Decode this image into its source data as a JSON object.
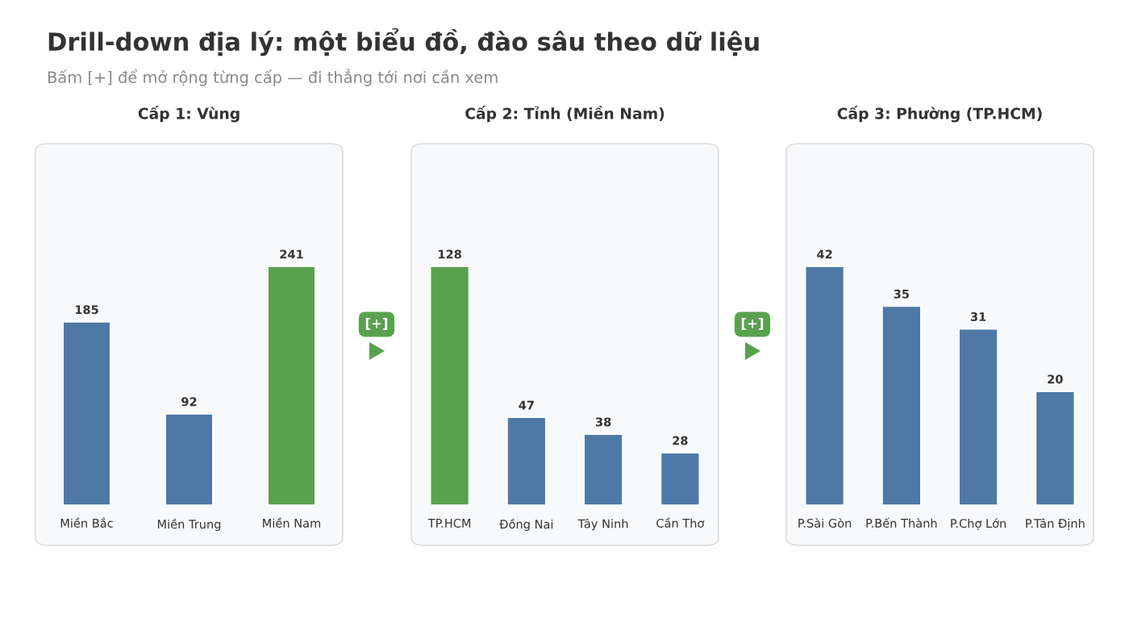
{
  "chart_data": [
    {
      "type": "other",
      "title": "Drill-down địa lý: một biểu đồ, đào sâu theo dữ liệu",
      "subtitle": "Bấm [+] để mở rộng từng cấp — đi thẳng tới nơi cần xem"
    },
    {
      "type": "bar",
      "title": "Cấp 1: Vùng",
      "categories": [
        "Miền Bắc",
        "Miền Trung",
        "Miền Nam"
      ],
      "values": [
        185,
        92,
        241
      ],
      "colors": [
        "#4e79a7",
        "#4e79a7",
        "#59a14f"
      ],
      "data_labels": true,
      "annotations": [
        "[+]"
      ]
    },
    {
      "type": "bar",
      "title": "Cấp 2: Tỉnh (Miền Nam)",
      "categories": [
        "TP.HCM",
        "Đồng Nai",
        "Tây Ninh",
        "Cần Thơ"
      ],
      "values": [
        128,
        47,
        38,
        28
      ],
      "colors": [
        "#59a14f",
        "#4e79a7",
        "#4e79a7",
        "#4e79a7"
      ],
      "data_labels": true,
      "annotations": [
        "[+]"
      ]
    },
    {
      "type": "bar",
      "title": "Cấp 3: Phường (TP.HCM)",
      "categories": [
        "P.Sài Gòn",
        "P.Bến Thành",
        "P.Chợ Lớn",
        "P.Tân Định"
      ],
      "values": [
        42,
        35,
        31,
        20
      ],
      "colors": [
        "#4e79a7",
        "#4e79a7",
        "#4e79a7",
        "#4e79a7"
      ],
      "data_labels": true
    }
  ]
}
